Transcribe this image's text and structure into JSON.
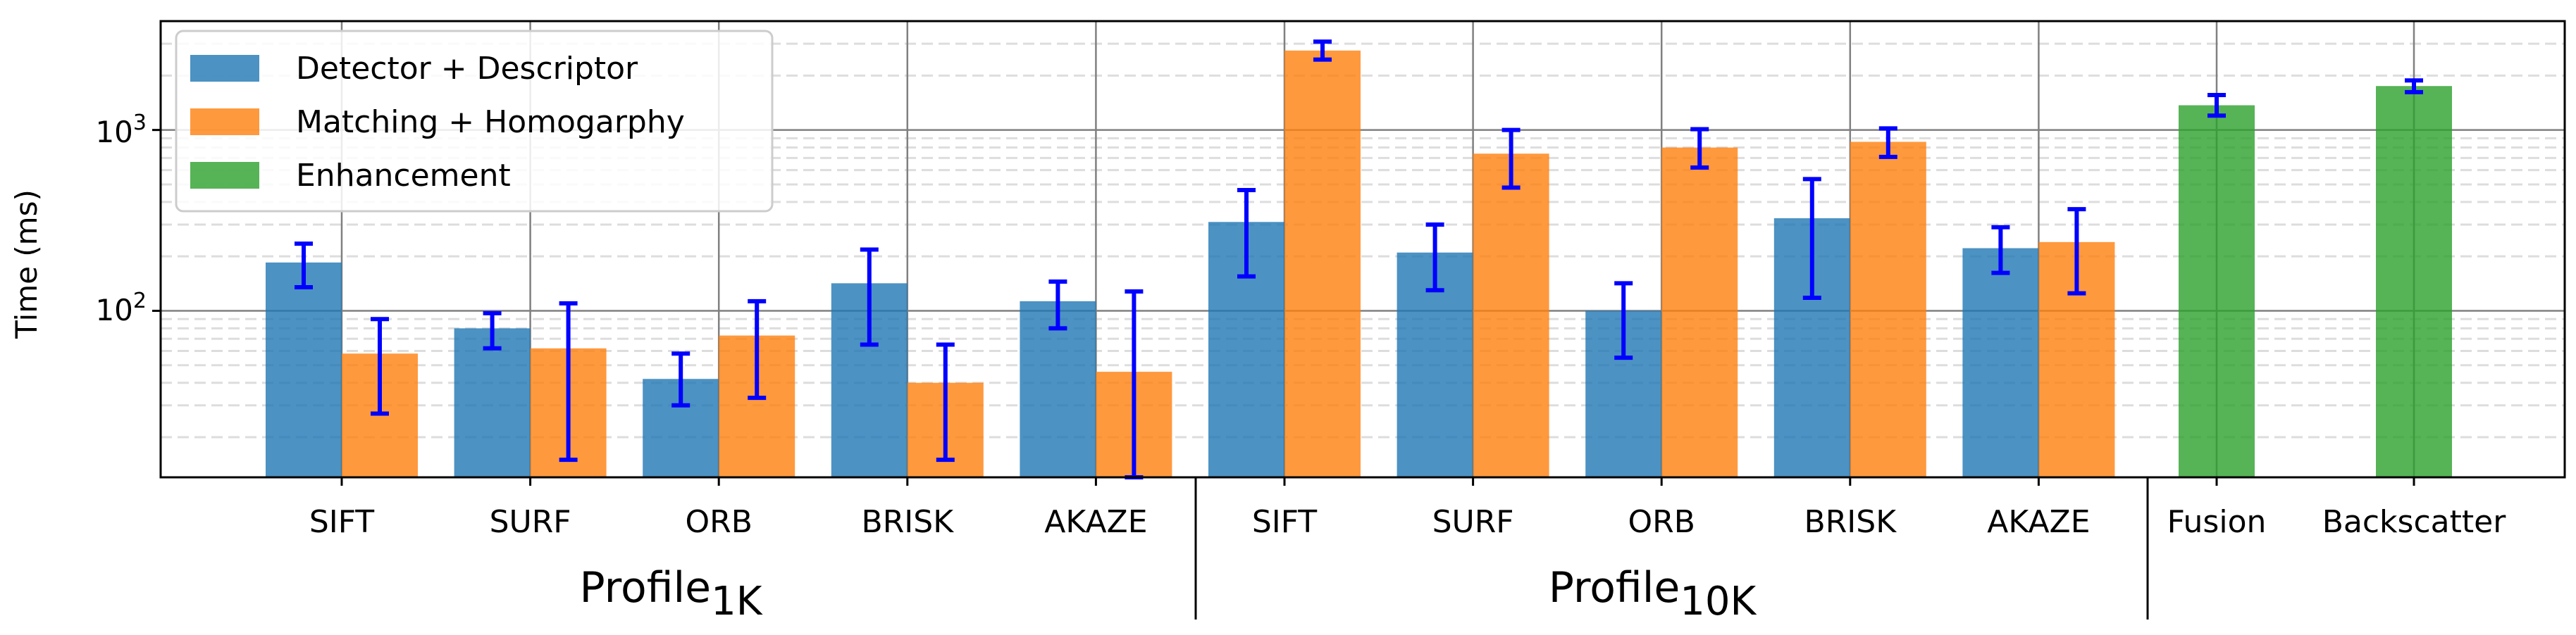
{
  "chart_data": {
    "type": "bar",
    "title": "",
    "ylabel": "Time (ms)",
    "yscale": "log",
    "ylim": [
      12,
      4000
    ],
    "y_tick_labels": [
      {
        "value": 100,
        "base": "10",
        "exp": "2"
      },
      {
        "value": 1000,
        "base": "10",
        "exp": "3"
      }
    ],
    "legend": {
      "position": "top-left",
      "entries": [
        {
          "name": "Detector + Descriptor",
          "color": "#1f77b4"
        },
        {
          "name": "Matching + Homogarphy",
          "color": "#ff7f0e"
        },
        {
          "name": "Enhancement",
          "color": "#2ca02c"
        }
      ]
    },
    "errorbar_color": "#0000ff",
    "groups": [
      {
        "label_main": "Profile",
        "label_sub": "1K"
      },
      {
        "label_main": "Profile",
        "label_sub": "10K"
      }
    ],
    "categories": [
      "SIFT",
      "SURF",
      "ORB",
      "BRISK",
      "AKAZE",
      "SIFT",
      "SURF",
      "ORB",
      "BRISK",
      "AKAZE",
      "Fusion",
      "Backscatter"
    ],
    "series": [
      {
        "name": "Detector + Descriptor",
        "color": "#1f77b4",
        "values": [
          185,
          80,
          42,
          142,
          113,
          310,
          210,
          100,
          325,
          222,
          null,
          null
        ],
        "err_low": [
          135,
          62,
          30,
          65,
          80,
          155,
          130,
          55,
          118,
          162,
          null,
          null
        ],
        "err_high": [
          235,
          97,
          58,
          218,
          145,
          465,
          300,
          142,
          535,
          290,
          null,
          null
        ]
      },
      {
        "name": "Matching + Homogarphy",
        "color": "#ff7f0e",
        "values": [
          58,
          62,
          73,
          40,
          46,
          2750,
          740,
          800,
          860,
          240,
          null,
          null
        ],
        "err_low": [
          27,
          15,
          33,
          15,
          12,
          2450,
          480,
          620,
          710,
          125,
          null,
          null
        ],
        "err_high": [
          90,
          110,
          113,
          65,
          128,
          3080,
          1000,
          1010,
          1020,
          365,
          null,
          null
        ]
      },
      {
        "name": "Enhancement",
        "color": "#2ca02c",
        "values": [
          null,
          null,
          null,
          null,
          null,
          null,
          null,
          null,
          null,
          null,
          1370,
          1750
        ],
        "err_low": [
          null,
          null,
          null,
          null,
          null,
          null,
          null,
          null,
          null,
          null,
          1200,
          1620
        ],
        "err_high": [
          null,
          null,
          null,
          null,
          null,
          null,
          null,
          null,
          null,
          null,
          1560,
          1880
        ]
      }
    ]
  }
}
